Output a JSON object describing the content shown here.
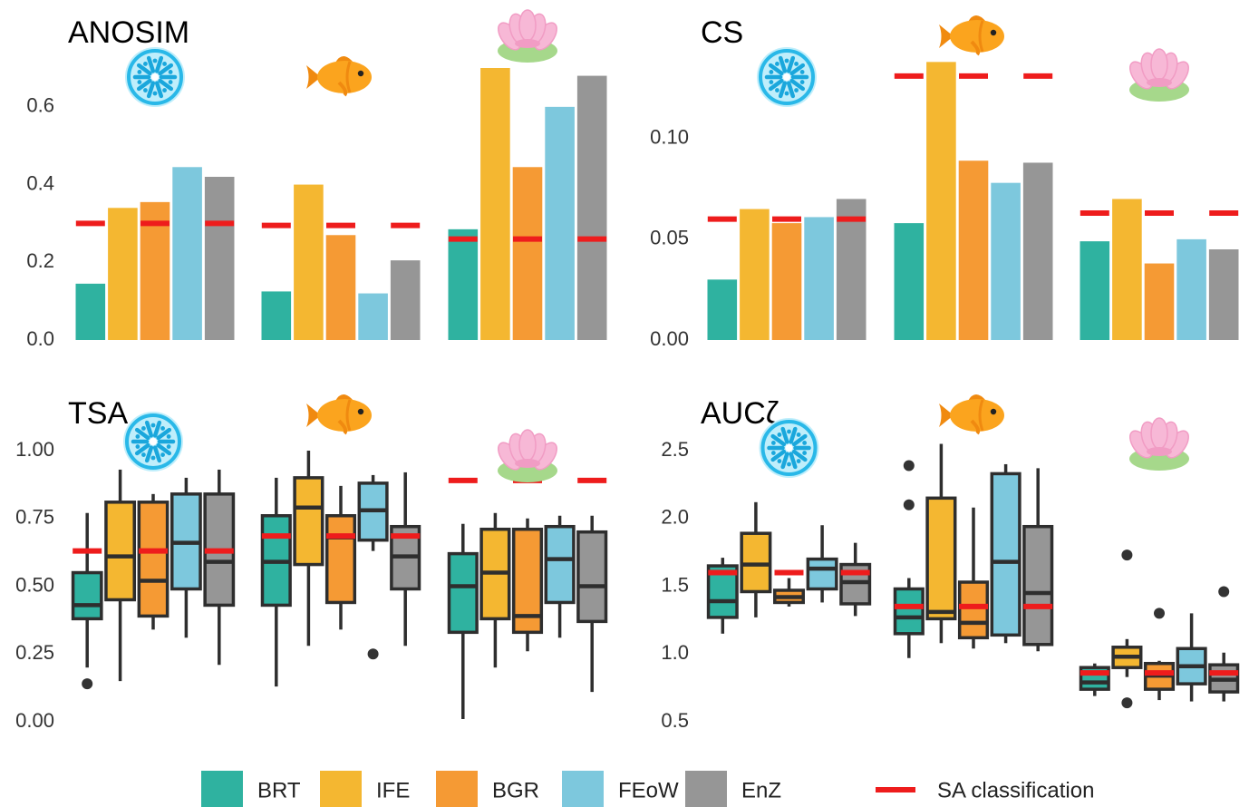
{
  "colors": {
    "BRT": "#2fb2a0",
    "IFE": "#f4b731",
    "BGR": "#f59a34",
    "FEoW": "#7dc8dd",
    "EnZ": "#969696",
    "SA": "#ee1c1c"
  },
  "legend": {
    "items": [
      {
        "key": "BRT",
        "label": "BRT"
      },
      {
        "key": "IFE",
        "label": "IFE"
      },
      {
        "key": "BGR",
        "label": "BGR"
      },
      {
        "key": "FEoW",
        "label": "FEoW"
      },
      {
        "key": "EnZ",
        "label": "EnZ"
      }
    ],
    "sa_label": "SA classification"
  },
  "chart_data": [
    {
      "type": "bar",
      "title": "ANOSIM",
      "ylim": [
        0,
        0.7
      ],
      "yticks": [
        0.0,
        0.2,
        0.4,
        0.6
      ],
      "tick_labels": [
        "0.0",
        "0.2",
        "0.4",
        "0.6"
      ],
      "groups": [
        {
          "icon": "diatom-icon",
          "values": [
            0.145,
            0.34,
            0.355,
            0.445,
            0.42
          ],
          "sa": 0.3
        },
        {
          "icon": "fish-icon",
          "values": [
            0.125,
            0.4,
            0.27,
            0.12,
            0.205
          ],
          "sa": 0.295
        },
        {
          "icon": "water-lily-icon",
          "values": [
            0.285,
            0.7,
            0.445,
            0.6,
            0.68
          ],
          "sa": 0.26
        }
      ]
    },
    {
      "type": "bar",
      "title": "CS",
      "ylim": [
        0,
        0.135
      ],
      "yticks": [
        0.0,
        0.05,
        0.1
      ],
      "tick_labels": [
        "0.00",
        "0.05",
        "0.10"
      ],
      "groups": [
        {
          "icon": "diatom-icon",
          "values": [
            0.03,
            0.065,
            0.058,
            0.061,
            0.07
          ],
          "sa": 0.06
        },
        {
          "icon": "fish-icon",
          "values": [
            0.058,
            0.138,
            0.089,
            0.078,
            0.088
          ],
          "sa": 0.131
        },
        {
          "icon": "water-lily-icon",
          "values": [
            0.049,
            0.07,
            0.038,
            0.05,
            0.045
          ],
          "sa": 0.063
        }
      ]
    },
    {
      "type": "box",
      "title": "TSA",
      "ylim": [
        0,
        1.0
      ],
      "yticks": [
        0.0,
        0.25,
        0.5,
        0.75,
        1.0
      ],
      "tick_labels": [
        "0.00",
        "0.25",
        "0.50",
        "0.75",
        "1.00"
      ],
      "groups": [
        {
          "icon": "diatom-icon",
          "sa": 0.63,
          "boxes": [
            {
              "min": 0.2,
              "q1": 0.38,
              "median": 0.43,
              "q3": 0.55,
              "max": 0.77,
              "outliers": [
                0.14
              ]
            },
            {
              "min": 0.15,
              "q1": 0.45,
              "median": 0.61,
              "q3": 0.81,
              "max": 0.93,
              "outliers": []
            },
            {
              "min": 0.34,
              "q1": 0.39,
              "median": 0.52,
              "q3": 0.81,
              "max": 0.84,
              "outliers": []
            },
            {
              "min": 0.31,
              "q1": 0.49,
              "median": 0.66,
              "q3": 0.84,
              "max": 0.9,
              "outliers": []
            },
            {
              "min": 0.21,
              "q1": 0.43,
              "median": 0.59,
              "q3": 0.84,
              "max": 0.93,
              "outliers": []
            }
          ]
        },
        {
          "icon": "fish-icon",
          "sa": 0.685,
          "boxes": [
            {
              "min": 0.13,
              "q1": 0.43,
              "median": 0.59,
              "q3": 0.76,
              "max": 0.9,
              "outliers": []
            },
            {
              "min": 0.28,
              "q1": 0.58,
              "median": 0.79,
              "q3": 0.9,
              "max": 1.0,
              "outliers": []
            },
            {
              "min": 0.34,
              "q1": 0.44,
              "median": 0.68,
              "q3": 0.76,
              "max": 0.87,
              "outliers": []
            },
            {
              "min": 0.63,
              "q1": 0.67,
              "median": 0.78,
              "q3": 0.88,
              "max": 0.91,
              "outliers": [
                0.25
              ]
            },
            {
              "min": 0.28,
              "q1": 0.49,
              "median": 0.61,
              "q3": 0.72,
              "max": 0.92,
              "outliers": []
            }
          ]
        },
        {
          "icon": "water-lily-icon",
          "sa": 0.89,
          "boxes": [
            {
              "min": 0.01,
              "q1": 0.33,
              "median": 0.5,
              "q3": 0.62,
              "max": 0.73,
              "outliers": []
            },
            {
              "min": 0.2,
              "q1": 0.38,
              "median": 0.55,
              "q3": 0.71,
              "max": 0.77,
              "outliers": []
            },
            {
              "min": 0.26,
              "q1": 0.33,
              "median": 0.39,
              "q3": 0.71,
              "max": 0.75,
              "outliers": []
            },
            {
              "min": 0.31,
              "q1": 0.44,
              "median": 0.6,
              "q3": 0.72,
              "max": 0.76,
              "outliers": []
            },
            {
              "min": 0.11,
              "q1": 0.37,
              "median": 0.5,
              "q3": 0.7,
              "max": 0.76,
              "outliers": []
            }
          ]
        }
      ]
    },
    {
      "type": "box",
      "title": "AUCζ",
      "ylim": [
        0.5,
        2.5
      ],
      "yticks": [
        0.5,
        1.0,
        1.5,
        2.0,
        2.5
      ],
      "tick_labels": [
        "0.5",
        "1.0",
        "1.5",
        "2.0",
        "2.5"
      ],
      "groups": [
        {
          "icon": "diatom-icon",
          "sa": 1.6,
          "boxes": [
            {
              "min": 1.15,
              "q1": 1.27,
              "median": 1.39,
              "q3": 1.65,
              "max": 1.71,
              "outliers": []
            },
            {
              "min": 1.27,
              "q1": 1.46,
              "median": 1.66,
              "q3": 1.89,
              "max": 2.12,
              "outliers": []
            },
            {
              "min": 1.35,
              "q1": 1.38,
              "median": 1.42,
              "q3": 1.47,
              "max": 1.56,
              "outliers": []
            },
            {
              "min": 1.38,
              "q1": 1.48,
              "median": 1.63,
              "q3": 1.7,
              "max": 1.95,
              "outliers": []
            },
            {
              "min": 1.28,
              "q1": 1.37,
              "median": 1.53,
              "q3": 1.66,
              "max": 1.82,
              "outliers": []
            }
          ]
        },
        {
          "icon": "fish-icon",
          "sa": 1.35,
          "boxes": [
            {
              "min": 0.97,
              "q1": 1.15,
              "median": 1.27,
              "q3": 1.48,
              "max": 1.56,
              "outliers": [
                2.39,
                2.1
              ]
            },
            {
              "min": 1.08,
              "q1": 1.26,
              "median": 1.31,
              "q3": 2.15,
              "max": 2.55,
              "outliers": []
            },
            {
              "min": 1.04,
              "q1": 1.12,
              "median": 1.23,
              "q3": 1.53,
              "max": 2.08,
              "outliers": []
            },
            {
              "min": 1.08,
              "q1": 1.14,
              "median": 1.68,
              "q3": 2.33,
              "max": 2.4,
              "outliers": []
            },
            {
              "min": 1.02,
              "q1": 1.07,
              "median": 1.45,
              "q3": 1.94,
              "max": 2.37,
              "outliers": []
            }
          ]
        },
        {
          "icon": "water-lily-icon",
          "sa": 0.86,
          "boxes": [
            {
              "min": 0.69,
              "q1": 0.74,
              "median": 0.79,
              "q3": 0.9,
              "max": 0.93,
              "outliers": []
            },
            {
              "min": 0.83,
              "q1": 0.9,
              "median": 0.98,
              "q3": 1.05,
              "max": 1.11,
              "outliers": [
                1.73,
                0.64
              ]
            },
            {
              "min": 0.66,
              "q1": 0.74,
              "median": 0.84,
              "q3": 0.93,
              "max": 0.95,
              "outliers": [
                1.3
              ]
            },
            {
              "min": 0.65,
              "q1": 0.78,
              "median": 0.91,
              "q3": 1.04,
              "max": 1.3,
              "outliers": []
            },
            {
              "min": 0.65,
              "q1": 0.72,
              "median": 0.81,
              "q3": 0.92,
              "max": 1.01,
              "outliers": [
                1.46
              ]
            }
          ]
        }
      ]
    }
  ]
}
